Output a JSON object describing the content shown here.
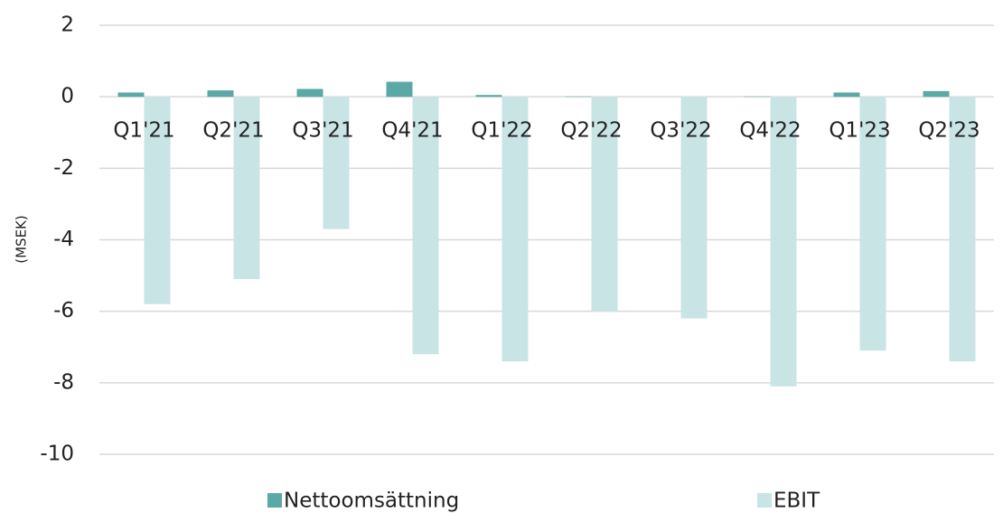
{
  "chart_data": {
    "type": "bar",
    "y_label": "(MSEK)",
    "categories": [
      "Q1'21",
      "Q2'21",
      "Q3'21",
      "Q4'21",
      "Q1'22",
      "Q2'22",
      "Q3'22",
      "Q4'22",
      "Q1'23",
      "Q2'23"
    ],
    "series": [
      {
        "name": "Nettoomsättning",
        "color": "#5aa9a6",
        "values": [
          0.12,
          0.18,
          0.22,
          0.42,
          0.05,
          0.01,
          0,
          0.01,
          0.12,
          0.16
        ]
      },
      {
        "name": "EBIT",
        "color": "#c9e4e5",
        "values": [
          -5.8,
          -5.1,
          -3.7,
          -7.2,
          -7.4,
          -6.0,
          -6.2,
          -8.1,
          -7.1,
          -7.4
        ]
      }
    ],
    "ylim": [
      -10,
      2
    ],
    "yticks": [
      -10,
      -8,
      -6,
      -4,
      -2,
      0,
      2
    ],
    "grid": true,
    "legend": "bottom"
  }
}
